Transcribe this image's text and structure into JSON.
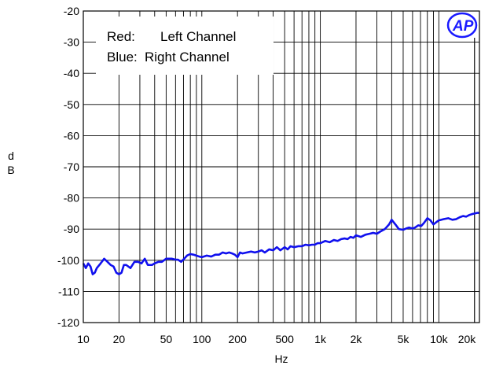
{
  "chart_data": {
    "type": "line",
    "title": "",
    "xlabel": "Hz",
    "ylabel": "dB",
    "x_scale": "log",
    "xlim": [
      10,
      22000
    ],
    "ylim": [
      -120,
      -20
    ],
    "x_ticks": [
      {
        "value": 10,
        "label": "10"
      },
      {
        "value": 20,
        "label": "20"
      },
      {
        "value": 50,
        "label": "50"
      },
      {
        "value": 100,
        "label": "100"
      },
      {
        "value": 200,
        "label": "200"
      },
      {
        "value": 500,
        "label": "500"
      },
      {
        "value": 1000,
        "label": "1k"
      },
      {
        "value": 2000,
        "label": "2k"
      },
      {
        "value": 5000,
        "label": "5k"
      },
      {
        "value": 10000,
        "label": "10k"
      },
      {
        "value": 20000,
        "label": "20k"
      }
    ],
    "y_ticks": [
      {
        "value": -20,
        "label": "-20"
      },
      {
        "value": -30,
        "label": "-30"
      },
      {
        "value": -40,
        "label": "-40"
      },
      {
        "value": -50,
        "label": "-50"
      },
      {
        "value": -60,
        "label": "-60"
      },
      {
        "value": -70,
        "label": "-70"
      },
      {
        "value": -80,
        "label": "-80"
      },
      {
        "value": -90,
        "label": "-90"
      },
      {
        "value": -100,
        "label": "-100"
      },
      {
        "value": -110,
        "label": "-110"
      },
      {
        "value": -120,
        "label": "-120"
      }
    ],
    "grid": true,
    "legend": {
      "position": "top-left",
      "entries": [
        {
          "label": "Red:",
          "text": "Left Channel",
          "color": "#ff0000"
        },
        {
          "label": "Blue:",
          "text": "Right Channel",
          "color": "#0000ff"
        }
      ]
    },
    "logo": "AP",
    "series": [
      {
        "color": "#1010ee",
        "x": [
          10,
          10.5,
          11,
          11.5,
          12,
          12.5,
          13,
          14,
          15,
          16,
          17,
          18,
          19,
          20,
          21,
          22,
          23,
          25,
          27,
          29,
          31,
          33,
          35,
          38,
          40,
          43,
          46,
          50,
          53,
          56,
          60,
          63,
          67,
          71,
          75,
          80,
          85,
          90,
          95,
          100,
          110,
          120,
          130,
          140,
          150,
          160,
          170,
          180,
          190,
          200,
          210,
          220,
          240,
          260,
          280,
          300,
          320,
          340,
          370,
          400,
          430,
          460,
          500,
          530,
          560,
          600,
          650,
          700,
          750,
          800,
          850,
          900,
          950,
          1000,
          1100,
          1200,
          1300,
          1400,
          1500,
          1600,
          1700,
          1800,
          1900,
          2000,
          2200,
          2400,
          2600,
          2800,
          3000,
          3200,
          3500,
          3800,
          4000,
          4300,
          4600,
          5000,
          5300,
          5600,
          6000,
          6300,
          6700,
          7100,
          7500,
          8000,
          8500,
          9000,
          9500,
          10000,
          11000,
          12000,
          13000,
          14000,
          15000,
          16000,
          17000,
          18000,
          19000,
          20000,
          21000,
          22000
        ],
        "y": [
          -101,
          -102.5,
          -101,
          -102,
          -104.5,
          -104,
          -102.5,
          -101,
          -99.5,
          -100.5,
          -101.5,
          -102,
          -104,
          -104.5,
          -104,
          -101.5,
          -101.5,
          -102.5,
          -100.5,
          -100.5,
          -101,
          -99.5,
          -101.5,
          -101.5,
          -101,
          -100.5,
          -100.5,
          -99.5,
          -99.5,
          -99.5,
          -99.8,
          -99.8,
          -100.5,
          -99.5,
          -98.5,
          -98,
          -98.2,
          -98.5,
          -98.8,
          -99,
          -98.5,
          -98.8,
          -98.2,
          -98.2,
          -97.5,
          -97.8,
          -97.5,
          -97.8,
          -98.2,
          -99,
          -97.5,
          -97.8,
          -97.5,
          -97.2,
          -97.5,
          -97.2,
          -96.8,
          -97.5,
          -96.5,
          -96.8,
          -95.8,
          -96.8,
          -95.8,
          -96.5,
          -95.5,
          -95.8,
          -95.5,
          -95.5,
          -95,
          -95.2,
          -95,
          -95,
          -94.5,
          -94.5,
          -93.8,
          -94.2,
          -93.5,
          -93.8,
          -93.2,
          -93,
          -93.2,
          -92.5,
          -92.8,
          -92,
          -92.5,
          -91.8,
          -91.5,
          -91.2,
          -91.5,
          -90.8,
          -90,
          -88.5,
          -87,
          -88.5,
          -90,
          -90.2,
          -89.8,
          -89.5,
          -89.8,
          -89.5,
          -88.8,
          -89,
          -88,
          -86.5,
          -87.2,
          -88.5,
          -87.8,
          -87.2,
          -86.8,
          -86.5,
          -87,
          -86.8,
          -86.2,
          -85.8,
          -86,
          -85.5,
          -85.2,
          -85,
          -84.8,
          -84.8
        ]
      }
    ]
  }
}
